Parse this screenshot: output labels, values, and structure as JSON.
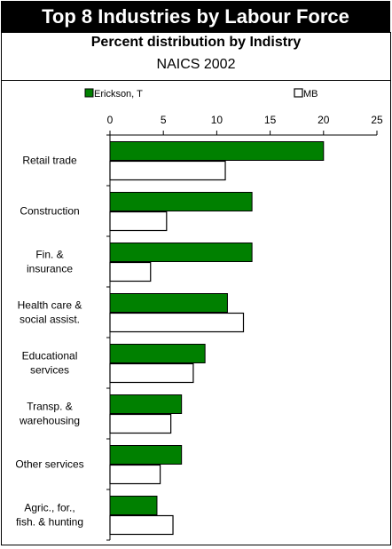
{
  "header": {
    "title": "Top 8 Industries by Labour Force",
    "subtitle": "Percent distribution by Indistry",
    "subtitle2": "NAICS 2002"
  },
  "colors": {
    "erickson": "#008000",
    "mb": "#ffffff",
    "bar_stroke": "#000000"
  },
  "chart_data": {
    "type": "bar",
    "orientation": "horizontal",
    "categories": [
      "Retail trade",
      "Construction",
      "Fin. &\ninsurance",
      "Health care &\nsocial assist.",
      "Educational\nservices",
      "Transp. &\nwarehousing",
      "Other services",
      "Agric., for.,\nfish. & hunting"
    ],
    "series": [
      {
        "name": "Erickson, T",
        "values": [
          20.0,
          13.3,
          13.3,
          11.0,
          8.9,
          6.7,
          6.7,
          4.4
        ]
      },
      {
        "name": "MB",
        "values": [
          10.8,
          5.3,
          3.8,
          12.5,
          7.8,
          5.7,
          4.7,
          5.9
        ]
      }
    ],
    "xlim": [
      0,
      25
    ],
    "xticks": [
      "0",
      "5",
      "10",
      "15",
      "20",
      "25"
    ],
    "xlabel": "",
    "ylabel": "",
    "legend_position": "top",
    "grid": false
  }
}
